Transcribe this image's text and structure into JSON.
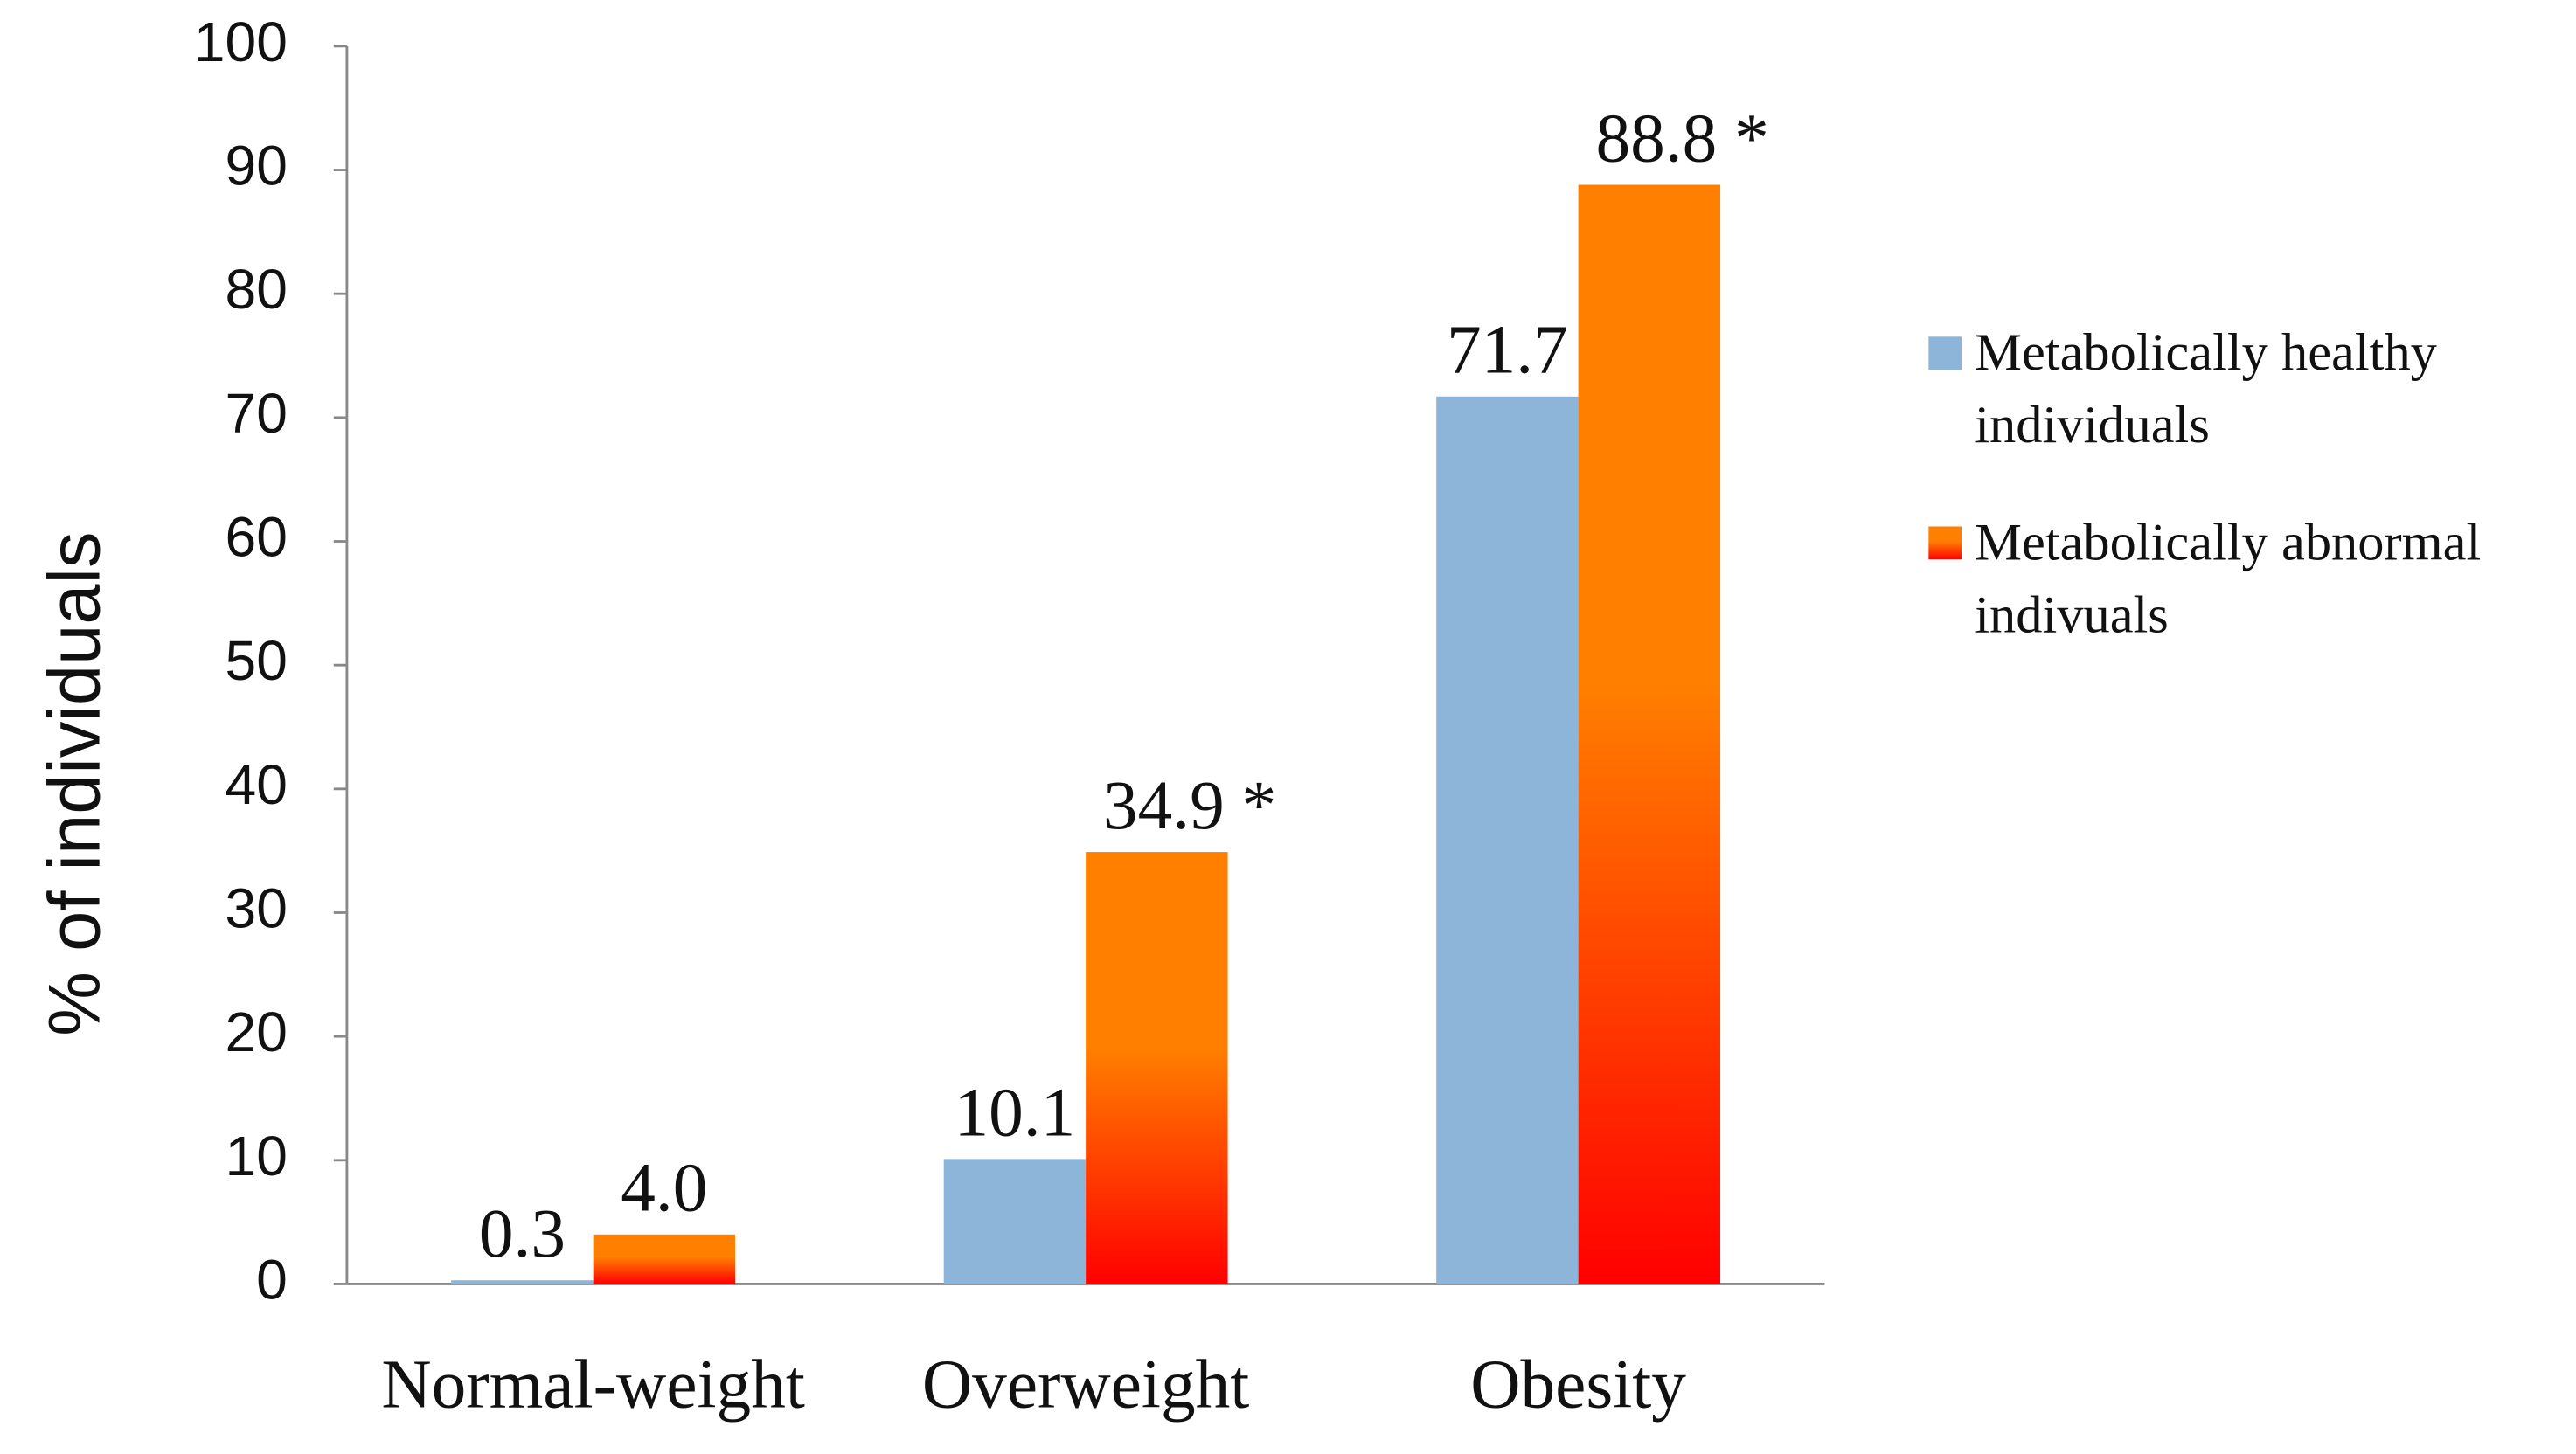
{
  "chart_data": {
    "type": "bar",
    "y_label": "% of individuals",
    "categories": [
      "Normal-weight",
      "Overweight",
      "Obesity"
    ],
    "series": [
      {
        "name": "Metabolically healthy individuals",
        "color": "#8db4d9",
        "values": [
          0.3,
          10.1,
          71.7
        ]
      },
      {
        "name": "Metabolically abnormal indivuals",
        "color": "#ff8000",
        "values": [
          4.0,
          34.9,
          88.8
        ],
        "value_labels": [
          "4.0",
          "34.9 *",
          "88.8 *"
        ]
      }
    ],
    "ylim": [
      0,
      100
    ],
    "yticks": [
      0,
      10,
      20,
      30,
      40,
      50,
      60,
      70,
      80,
      90,
      100
    ],
    "grid": false,
    "legend": "right"
  }
}
